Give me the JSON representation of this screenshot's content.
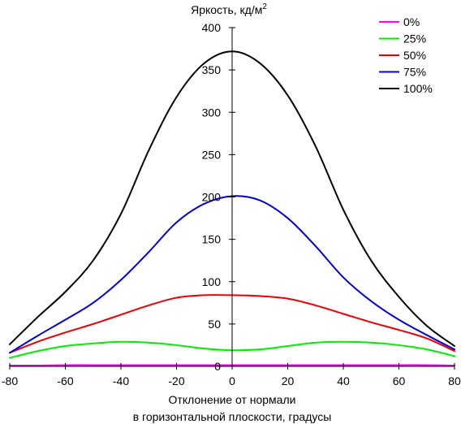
{
  "chart_data": {
    "type": "line",
    "ylabel": "Яркость, кд/м",
    "ylabel_superscript": "2",
    "xlabel_line1": "Отклонение от нормали",
    "xlabel_line2": "в горизонтальной плоскости, градусы",
    "xlim": [
      -80,
      80
    ],
    "ylim": [
      0,
      400
    ],
    "x_ticks": [
      -80,
      -60,
      -40,
      -20,
      0,
      20,
      40,
      60,
      80
    ],
    "y_ticks": [
      0,
      50,
      100,
      150,
      200,
      250,
      300,
      350,
      400
    ],
    "x_tick_labels": [
      "-80",
      "-60",
      "-40",
      "-20",
      "0",
      "20",
      "40",
      "60",
      "80"
    ],
    "y_tick_labels": [
      "0",
      "50",
      "100",
      "150",
      "200",
      "250",
      "300",
      "350",
      "400"
    ],
    "grid": false,
    "legend_position": "top-right",
    "x": [
      -80,
      -70,
      -60,
      -50,
      -40,
      -30,
      -20,
      -10,
      0,
      10,
      20,
      30,
      40,
      50,
      60,
      70,
      80
    ],
    "series": [
      {
        "name": "0%",
        "color": "#ff00ff",
        "values": [
          1,
          1,
          1.5,
          1.5,
          1.5,
          1.5,
          1.5,
          1.5,
          1.5,
          1.5,
          1.5,
          1.5,
          1.5,
          1.5,
          1.5,
          1.5,
          1
        ]
      },
      {
        "name": "25%",
        "color": "#00ee00",
        "values": [
          10,
          18,
          24,
          27,
          29,
          28,
          25,
          21,
          19,
          20,
          24,
          28,
          29,
          28,
          25,
          20,
          12
        ]
      },
      {
        "name": "50%",
        "color": "#ee0000",
        "values": [
          16,
          29,
          40,
          50,
          61,
          72,
          81,
          84,
          84,
          83,
          80,
          72,
          62,
          52,
          43,
          33,
          18
        ]
      },
      {
        "name": "75%",
        "color": "#0000dd",
        "values": [
          16,
          36,
          55,
          75,
          102,
          135,
          170,
          192,
          201,
          196,
          175,
          142,
          105,
          77,
          55,
          37,
          20
        ]
      },
      {
        "name": "100%",
        "color": "#000000",
        "values": [
          26,
          58,
          88,
          125,
          180,
          255,
          318,
          358,
          372,
          358,
          320,
          260,
          185,
          125,
          82,
          48,
          24
        ]
      }
    ]
  }
}
